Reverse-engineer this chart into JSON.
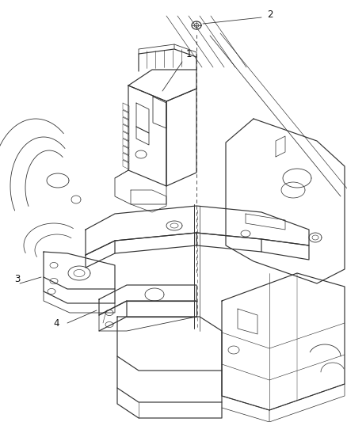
{
  "background_color": "#ffffff",
  "line_color": "#333333",
  "line_width": 0.85,
  "label_color": "#111111",
  "label_fontsize": 8.5,
  "fig_width": 4.38,
  "fig_height": 5.33,
  "dpi": 100
}
